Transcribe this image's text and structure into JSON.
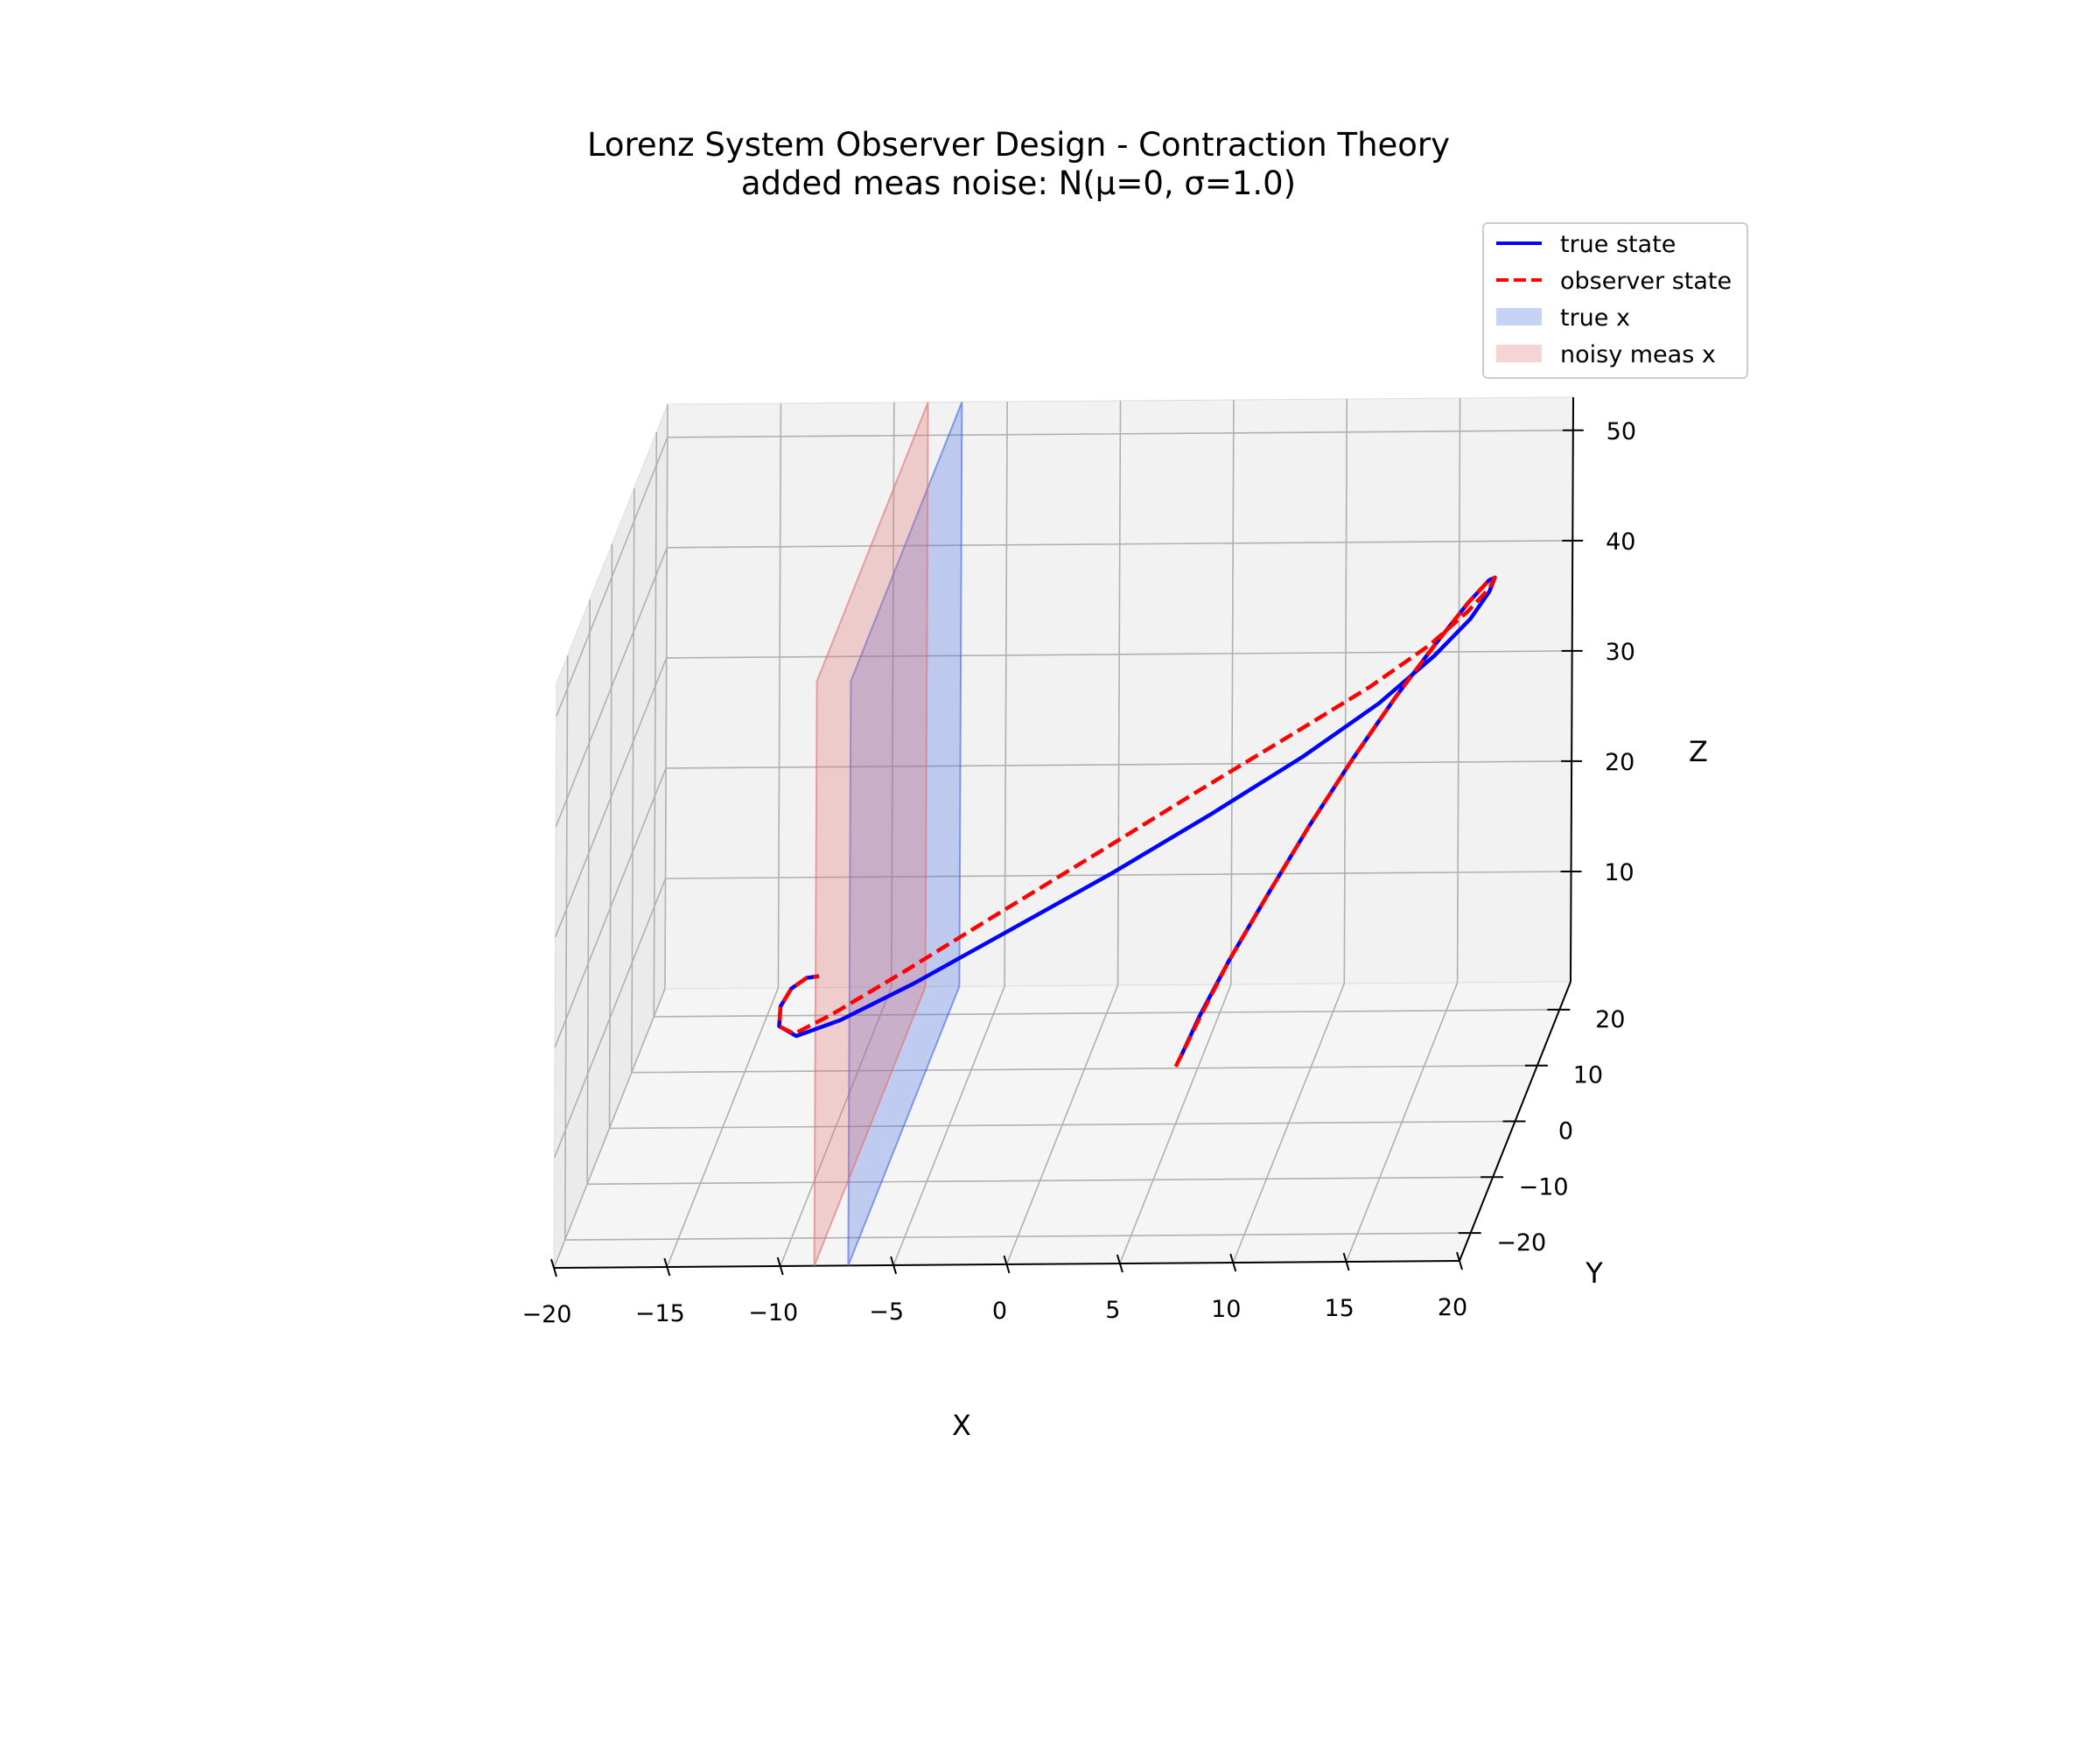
{
  "title": "Lorenz System Observer Design - Contraction Theory",
  "subtitle": "added meas noise: N(μ=0, σ=1.0)",
  "legend": {
    "placement": "top-right",
    "items": [
      {
        "label": "true state",
        "kind": "line",
        "color": "#0000ff",
        "dashed": false
      },
      {
        "label": "observer state",
        "kind": "line",
        "color": "#ff0000",
        "dashed": true
      },
      {
        "label": "true x",
        "kind": "patch",
        "color": "#4169e1"
      },
      {
        "label": "noisy meas x",
        "kind": "patch",
        "color": "#e07070"
      }
    ]
  },
  "chart_data": {
    "type": "line3d",
    "title": "Lorenz System Observer Design - Contraction Theory",
    "subtitle": "added meas noise: N(μ=0, σ=1.0)",
    "xlabel": "X",
    "ylabel": "Y",
    "zlabel": "Z",
    "xlim": [
      -20,
      20
    ],
    "ylim": [
      -25,
      25
    ],
    "zlim": [
      0,
      53
    ],
    "xticks": [
      "−20",
      "−15",
      "−10",
      "−5",
      "0",
      "5",
      "10",
      "15",
      "20"
    ],
    "yticks": [
      "−20",
      "−10",
      "0",
      "10",
      "20"
    ],
    "zticks": [
      "10",
      "20",
      "30",
      "40",
      "50"
    ],
    "grid": true,
    "legend_placement": "top-right",
    "series": [
      {
        "name": "true state",
        "style": "solid",
        "color": "#0000ff",
        "x": [
          5.2,
          5.8,
          6.8,
          8.1,
          9.6,
          11.2,
          12.9,
          14.5,
          15.9,
          16.9,
          17.4,
          17.5,
          17.1,
          16.0,
          14.0,
          11.0,
          7.2,
          3.0,
          -1.5,
          -5.4,
          -8.6,
          -10.5,
          -11.3,
          -11.3,
          -10.9,
          -10.3,
          -9.8
        ],
        "y": [
          0.0,
          2.5,
          5.5,
          9.0,
          12.5,
          15.5,
          18.0,
          19.5,
          20.0,
          19.0,
          16.5,
          13.0,
          8.5,
          3.5,
          -1.0,
          -4.5,
          -7.5,
          -9.5,
          -11.0,
          -12.0,
          -12.6,
          -13.0,
          -12.6,
          -12.0,
          -11.2,
          -10.5,
          -10.0
        ],
        "z": [
          6.0,
          8.5,
          12.0,
          16.0,
          20.5,
          25.0,
          29.5,
          33.5,
          37.0,
          39.5,
          41.0,
          41.5,
          41.3,
          40.5,
          38.5,
          35.5,
          31.8,
          27.5,
          23.0,
          19.0,
          16.0,
          14.8,
          15.5,
          17.0,
          18.2,
          18.8,
          18.7
        ]
      },
      {
        "name": "observer state",
        "style": "dashed",
        "color": "#ff0000",
        "x": [
          5.0,
          5.8,
          6.8,
          8.1,
          9.6,
          11.2,
          12.9,
          14.5,
          15.9,
          16.9,
          17.4,
          17.5,
          17.0,
          15.8,
          13.6,
          10.5,
          6.7,
          2.5,
          -2.0,
          -5.9,
          -9.0,
          -10.6,
          -11.3,
          -11.3,
          -10.9,
          -10.3,
          -9.8
        ],
        "y": [
          0.0,
          2.5,
          5.5,
          9.0,
          12.5,
          15.5,
          18.0,
          19.5,
          20.0,
          19.0,
          16.5,
          13.0,
          8.5,
          3.5,
          -1.0,
          -4.5,
          -7.5,
          -9.5,
          -11.0,
          -12.0,
          -12.6,
          -13.0,
          -12.6,
          -12.0,
          -11.2,
          -10.5,
          -10.0
        ],
        "z": [
          5.2,
          8.3,
          12.0,
          16.0,
          20.5,
          25.0,
          29.5,
          33.5,
          37.0,
          39.5,
          41.0,
          41.8,
          42.0,
          41.5,
          40.0,
          37.5,
          34.0,
          29.5,
          24.5,
          20.0,
          16.5,
          15.0,
          15.5,
          17.0,
          18.2,
          18.8,
          18.7
        ]
      }
    ],
    "planes": [
      {
        "name": "true x",
        "x": -7.0,
        "y": [
          -25,
          25
        ],
        "z": [
          0,
          53
        ],
        "color": "#4169e1",
        "alpha": 0.3
      },
      {
        "name": "noisy meas x",
        "x": -8.5,
        "y": [
          -25,
          25
        ],
        "z": [
          0,
          53
        ],
        "color": "#e07070",
        "alpha": 0.3
      }
    ]
  }
}
